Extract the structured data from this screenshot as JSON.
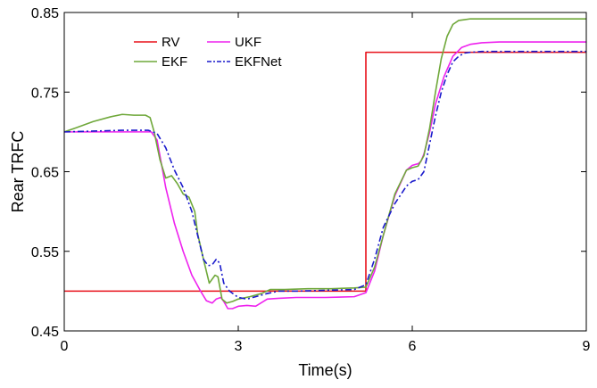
{
  "chart_data": {
    "type": "line",
    "xlabel": "Time(s)",
    "ylabel": "Rear TRFC",
    "xlim": [
      0,
      9
    ],
    "ylim": [
      0.45,
      0.85
    ],
    "xticks": [
      0,
      3,
      6,
      9
    ],
    "xtick_labels": [
      "0",
      "3",
      "6",
      "9"
    ],
    "yticks": [
      0.45,
      0.55,
      0.65,
      0.75,
      0.85
    ],
    "ytick_labels": [
      "0.45",
      "0.55",
      "0.65",
      "0.75",
      "0.85"
    ],
    "grid": false,
    "legend_position": "top-left",
    "series": [
      {
        "name": "RV",
        "color": "#e8101a",
        "dash": "solid",
        "x": [
          0,
          5.2,
          5.2,
          9
        ],
        "y": [
          0.5,
          0.5,
          0.8,
          0.8
        ]
      },
      {
        "name": "UKF",
        "color": "#ee22ee",
        "dash": "solid",
        "x": [
          0,
          1.5,
          1.6,
          1.75,
          1.9,
          2.05,
          2.2,
          2.35,
          2.45,
          2.55,
          2.62,
          2.7,
          2.75,
          2.82,
          2.9,
          3.0,
          3.15,
          3.3,
          3.5,
          3.7,
          4.0,
          4.5,
          5.0,
          5.2,
          5.35,
          5.5,
          5.7,
          5.9,
          6.0,
          6.1,
          6.15,
          6.2,
          6.3,
          6.4,
          6.55,
          6.7,
          6.85,
          7.0,
          7.2,
          7.5,
          8.0,
          9.0
        ],
        "y": [
          0.7,
          0.7,
          0.69,
          0.63,
          0.585,
          0.55,
          0.52,
          0.5,
          0.488,
          0.485,
          0.49,
          0.492,
          0.487,
          0.478,
          0.478,
          0.481,
          0.482,
          0.481,
          0.49,
          0.491,
          0.492,
          0.492,
          0.493,
          0.498,
          0.525,
          0.57,
          0.62,
          0.652,
          0.658,
          0.66,
          0.663,
          0.672,
          0.7,
          0.735,
          0.77,
          0.795,
          0.806,
          0.81,
          0.812,
          0.813,
          0.813,
          0.813
        ]
      },
      {
        "name": "EKF",
        "color": "#6fa83a",
        "dash": "solid",
        "x": [
          0,
          0.2,
          0.5,
          0.8,
          1.0,
          1.2,
          1.4,
          1.48,
          1.55,
          1.65,
          1.75,
          1.85,
          1.95,
          2.05,
          2.15,
          2.25,
          2.3,
          2.4,
          2.5,
          2.6,
          2.65,
          2.72,
          2.8,
          2.9,
          3.0,
          3.2,
          3.4,
          3.55,
          3.8,
          4.2,
          4.6,
          5.0,
          5.2,
          5.35,
          5.5,
          5.7,
          5.9,
          6.0,
          6.1,
          6.2,
          6.3,
          6.4,
          6.5,
          6.6,
          6.7,
          6.8,
          6.9,
          7.0,
          7.2,
          7.5,
          8.0,
          9.0
        ],
        "y": [
          0.7,
          0.705,
          0.713,
          0.719,
          0.722,
          0.721,
          0.721,
          0.718,
          0.7,
          0.665,
          0.642,
          0.645,
          0.635,
          0.622,
          0.618,
          0.6,
          0.572,
          0.54,
          0.51,
          0.52,
          0.518,
          0.49,
          0.485,
          0.487,
          0.49,
          0.493,
          0.497,
          0.502,
          0.502,
          0.503,
          0.503,
          0.504,
          0.505,
          0.53,
          0.57,
          0.622,
          0.652,
          0.655,
          0.657,
          0.67,
          0.705,
          0.75,
          0.792,
          0.82,
          0.835,
          0.84,
          0.841,
          0.842,
          0.842,
          0.842,
          0.842,
          0.842
        ]
      },
      {
        "name": "EKFNet",
        "color": "#1a1acc",
        "dash": "dashdot",
        "x": [
          0,
          0.5,
          1.0,
          1.45,
          1.6,
          1.75,
          1.9,
          2.05,
          2.2,
          2.3,
          2.4,
          2.48,
          2.55,
          2.62,
          2.68,
          2.75,
          2.85,
          3.0,
          3.15,
          3.3,
          3.5,
          3.7,
          4.0,
          4.5,
          5.0,
          5.2,
          5.35,
          5.5,
          5.7,
          5.9,
          6.0,
          6.1,
          6.2,
          6.3,
          6.4,
          6.5,
          6.6,
          6.7,
          6.8,
          6.9,
          7.0,
          7.2,
          7.5,
          8.0,
          9.0
        ],
        "y": [
          0.7,
          0.701,
          0.702,
          0.702,
          0.698,
          0.68,
          0.652,
          0.63,
          0.6,
          0.57,
          0.54,
          0.532,
          0.533,
          0.54,
          0.535,
          0.51,
          0.5,
          0.492,
          0.49,
          0.493,
          0.497,
          0.5,
          0.5,
          0.501,
          0.502,
          0.508,
          0.54,
          0.58,
          0.61,
          0.632,
          0.638,
          0.64,
          0.65,
          0.685,
          0.72,
          0.75,
          0.772,
          0.788,
          0.795,
          0.799,
          0.8,
          0.801,
          0.801,
          0.801,
          0.801
        ]
      }
    ]
  }
}
